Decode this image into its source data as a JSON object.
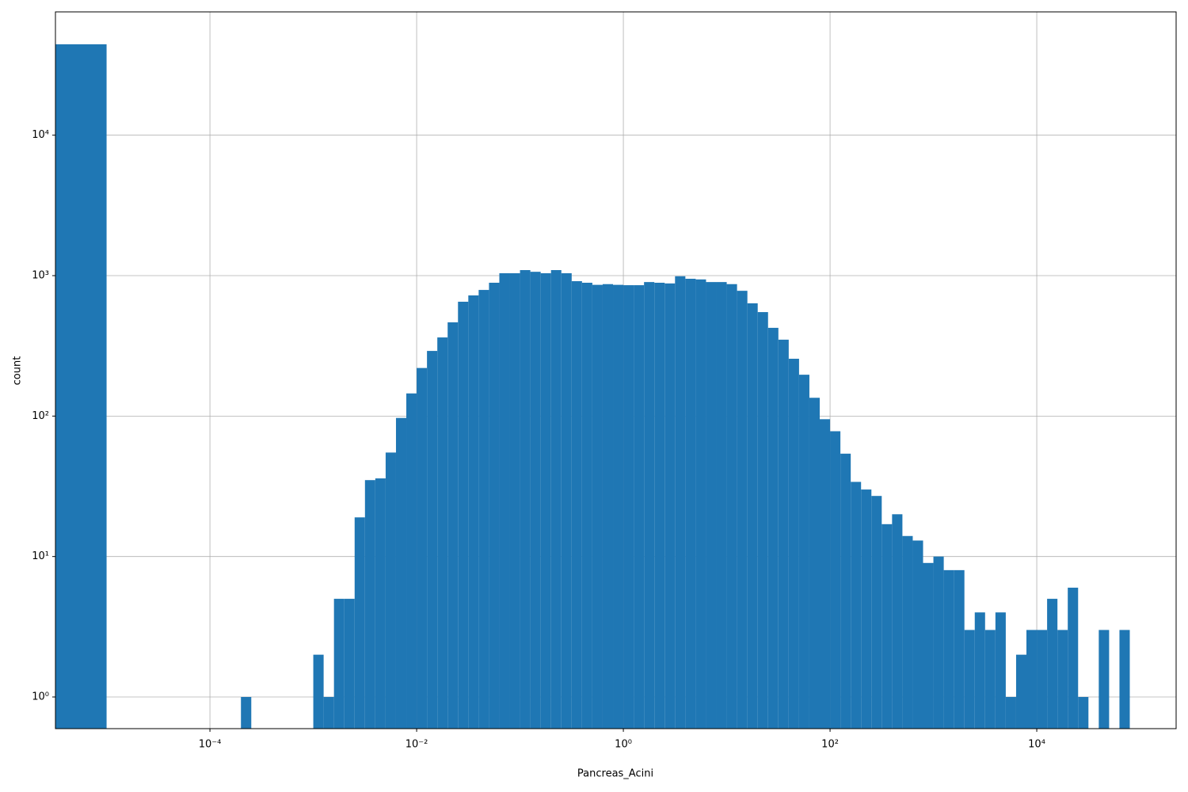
{
  "chart_data": {
    "type": "histogram",
    "x_label": "Pancreas_Acini",
    "y_label": "count",
    "color": "#1f77b4",
    "log_x": true,
    "log_y": true,
    "grid": true,
    "bins": [
      0,
      1e-05,
      1.259e-05,
      1.585e-05,
      1.995e-05,
      2.512e-05,
      3.162e-05,
      3.981e-05,
      5.012e-05,
      6.31e-05,
      7.943e-05,
      0.0001,
      0.0001259,
      0.0001585,
      0.0001995,
      0.0002512,
      0.0003162,
      0.0003981,
      0.0005012,
      0.000631,
      0.0007943,
      0.001,
      0.001259,
      0.001585,
      0.001995,
      0.002512,
      0.003162,
      0.003981,
      0.005012,
      0.00631,
      0.007943,
      0.01,
      0.01259,
      0.01585,
      0.01995,
      0.02512,
      0.03162,
      0.03981,
      0.05012,
      0.0631,
      0.07943,
      0.1,
      0.1259,
      0.1585,
      0.1995,
      0.2512,
      0.3162,
      0.3981,
      0.5012,
      0.631,
      0.7943,
      1,
      1.259,
      1.585,
      1.995,
      2.512,
      3.162,
      3.981,
      5.012,
      6.31,
      7.943,
      10,
      12.59,
      15.85,
      19.95,
      25.12,
      31.62,
      39.81,
      50.12,
      63.1,
      79.43,
      100,
      125.9,
      158.5,
      199.5,
      251.2,
      316.2,
      398.1,
      501.2,
      631,
      794.3,
      1000,
      1259,
      1585,
      1995,
      2512,
      3162,
      3981,
      5012,
      6310,
      7943,
      10000,
      12590,
      15850,
      19950,
      25120,
      31620,
      39810,
      50120,
      63100,
      79430
    ],
    "counts": [
      44400,
      0,
      0,
      0,
      0,
      0,
      0,
      0,
      0,
      0,
      0,
      0,
      0,
      0,
      1,
      0,
      0,
      0,
      0,
      0,
      0,
      2,
      1,
      5,
      5,
      19,
      35,
      36,
      55,
      97,
      145,
      220,
      291,
      363,
      465,
      652,
      723,
      791,
      890,
      1040,
      1040,
      1095,
      1065,
      1040,
      1095,
      1040,
      913,
      890,
      860,
      870,
      860,
      855,
      855,
      900,
      890,
      880,
      990,
      950,
      940,
      900,
      900,
      870,
      780,
      635,
      550,
      425,
      350,
      256,
      197,
      135,
      95,
      78,
      54,
      34,
      30,
      27,
      17,
      20,
      14,
      13,
      9,
      10,
      8,
      8,
      3,
      4,
      3,
      4,
      1,
      2,
      3,
      3,
      5,
      3,
      6,
      1,
      0,
      3,
      0,
      3
    ],
    "xlim": [
      3.2e-06,
      223000
    ],
    "ylim": [
      0.595,
      75500
    ],
    "xticks": [
      {
        "value": 0.0001,
        "label": "10⁻⁴"
      },
      {
        "value": 0.01,
        "label": "10⁻²"
      },
      {
        "value": 1,
        "label": "10⁰"
      },
      {
        "value": 100,
        "label": "10²"
      },
      {
        "value": 10000,
        "label": "10⁴"
      }
    ],
    "yticks": [
      {
        "value": 1,
        "label": "10⁰"
      },
      {
        "value": 10,
        "label": "10¹"
      },
      {
        "value": 100,
        "label": "10²"
      },
      {
        "value": 1000,
        "label": "10³"
      },
      {
        "value": 10000,
        "label": "10⁴"
      }
    ]
  }
}
